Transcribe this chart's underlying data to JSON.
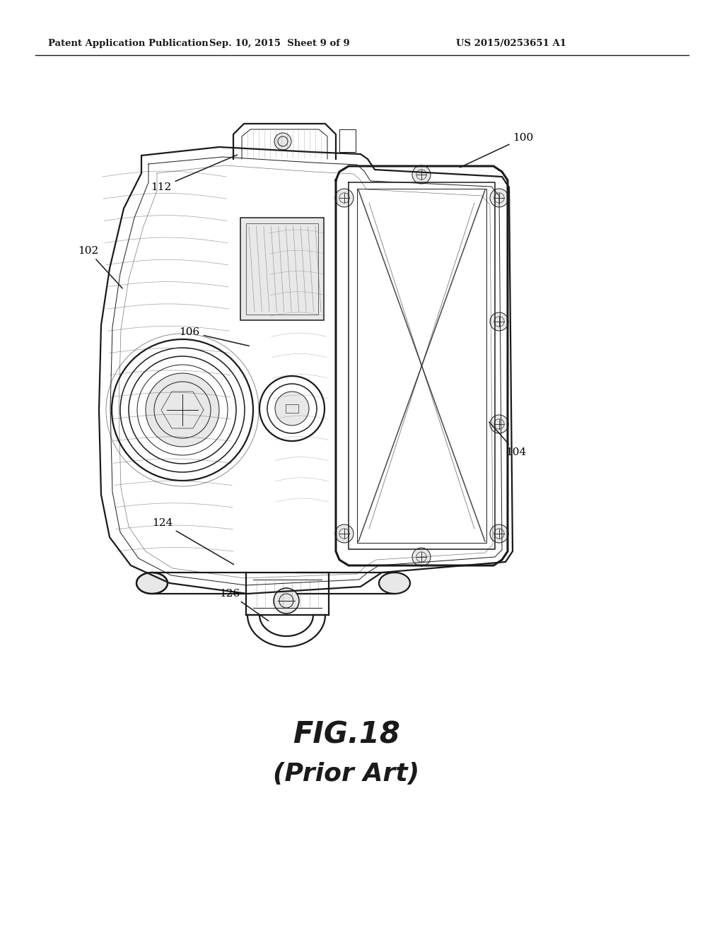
{
  "background_color": "#ffffff",
  "header_left": "Patent Application Publication",
  "header_center": "Sep. 10, 2015  Sheet 9 of 9",
  "header_right": "US 2015/0253651 A1",
  "fig_label": "FIG.18",
  "fig_sublabel": "(Prior Art)",
  "header_fontsize": 9.5,
  "fig_label_fontsize": 30,
  "fig_sublabel_fontsize": 26,
  "label_fontsize": 11
}
